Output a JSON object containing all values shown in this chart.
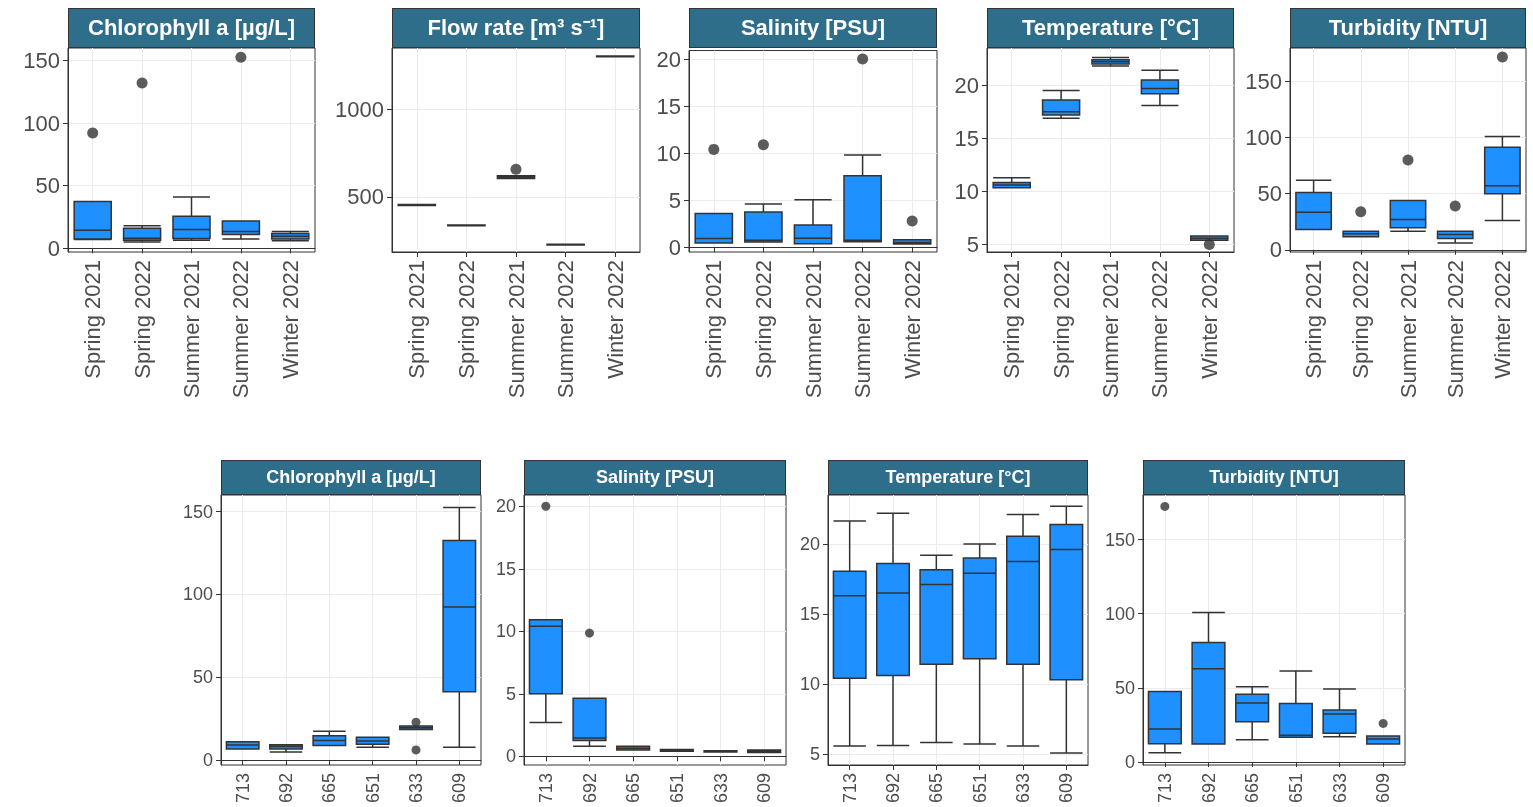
{
  "chart_data": [
    {
      "type": "box",
      "title": "Chlorophyll a [µg/L]",
      "categories": [
        "Spring 2021",
        "Spring 2022",
        "Summer 2021",
        "Summer 2022",
        "Winter 2022"
      ],
      "ylim": [
        -3,
        160
      ],
      "yticks": [
        0,
        50,
        100,
        150
      ],
      "grid": true,
      "series": [
        {
          "color": "#1e90ff",
          "boxes": [
            {
              "low": 7,
              "q1": 7.3,
              "median": 14.4,
              "q3": 37.3,
              "high": 37.3,
              "outliers": [
                92
              ]
            },
            {
              "low": 5,
              "q1": 6.4,
              "median": 8,
              "q3": 16,
              "high": 18,
              "outliers": [
                132
              ]
            },
            {
              "low": 6.4,
              "q1": 7.7,
              "median": 15,
              "q3": 25.5,
              "high": 41
            },
            {
              "low": 7.3,
              "q1": 10.9,
              "median": 13.4,
              "q3": 21.7,
              "high": 21.7,
              "outliers": [
                152.6
              ]
            },
            {
              "low": 6,
              "q1": 7.3,
              "median": 9.6,
              "q3": 11.8,
              "high": 13.4
            }
          ]
        }
      ]
    },
    {
      "type": "box",
      "title": "Flow rate [m³ s⁻¹]",
      "categories": [
        "Spring 2021",
        "Spring 2022",
        "Summer 2021",
        "Summer 2022",
        "Winter 2022"
      ],
      "ylim": [
        185,
        1350
      ],
      "yticks": [
        500,
        1000
      ],
      "grid": true,
      "series": [
        {
          "color": "#1e90ff",
          "boxes": [
            {
              "low": 450,
              "q1": 450,
              "median": 453,
              "q3": 456,
              "high": 456
            },
            {
              "low": 335,
              "q1": 335,
              "median": 337,
              "q3": 339,
              "high": 339
            },
            {
              "low": 605,
              "q1": 605,
              "median": 612,
              "q3": 620,
              "high": 620,
              "outliers": [
                657
              ]
            },
            {
              "low": 225,
              "q1": 225,
              "median": 227,
              "q3": 229,
              "high": 229
            },
            {
              "low": 1300,
              "q1": 1300,
              "median": 1302,
              "q3": 1304,
              "high": 1304
            }
          ]
        }
      ]
    },
    {
      "type": "box",
      "title": "Salinity [PSU]",
      "categories": [
        "Spring 2021",
        "Spring 2022",
        "Summer 2021",
        "Summer 2022",
        "Winter 2022"
      ],
      "ylim": [
        -0.5,
        20.9
      ],
      "yticks": [
        0,
        5,
        10,
        15,
        20
      ],
      "grid": true,
      "series": [
        {
          "color": "#1e90ff",
          "boxes": [
            {
              "low": 0.46,
              "q1": 0.46,
              "median": 0.93,
              "q3": 3.6,
              "high": 3.6,
              "outliers": [
                10.4
              ]
            },
            {
              "low": 0.55,
              "q1": 0.55,
              "median": 0.76,
              "q3": 3.75,
              "high": 4.6,
              "outliers": [
                10.9
              ]
            },
            {
              "low": 0.38,
              "q1": 0.38,
              "median": 0.97,
              "q3": 2.36,
              "high": 5.06
            },
            {
              "low": 0.59,
              "q1": 0.59,
              "median": 0.76,
              "q3": 7.6,
              "high": 9.8,
              "outliers": [
                20
              ]
            },
            {
              "low": 0.34,
              "q1": 0.34,
              "median": 0.5,
              "q3": 0.8,
              "high": 0.8,
              "outliers": [
                2.8
              ]
            }
          ]
        }
      ]
    },
    {
      "type": "box",
      "title": "Temperature [°C]",
      "categories": [
        "Spring 2021",
        "Spring 2022",
        "Summer 2021",
        "Summer 2022",
        "Winter 2022"
      ],
      "ylim": [
        4.3,
        23.5
      ],
      "yticks": [
        5,
        10,
        15,
        20
      ],
      "grid": true,
      "series": [
        {
          "color": "#1e90ff",
          "boxes": [
            {
              "low": 10.34,
              "q1": 10.34,
              "median": 10.6,
              "q3": 10.84,
              "high": 11.3
            },
            {
              "low": 16.9,
              "q1": 17.2,
              "median": 17.5,
              "q3": 18.6,
              "high": 19.5
            },
            {
              "low": 21.8,
              "q1": 22,
              "median": 22.2,
              "q3": 22.4,
              "high": 22.6
            },
            {
              "low": 18.1,
              "q1": 19.2,
              "median": 19.7,
              "q3": 20.5,
              "high": 21.4
            },
            {
              "low": 5.4,
              "q1": 5.4,
              "median": 5.6,
              "q3": 5.8,
              "high": 5.8,
              "outliers": [
                5
              ]
            }
          ]
        }
      ]
    },
    {
      "type": "box",
      "title": "Turbidity [NTU]",
      "categories": [
        "Spring 2021",
        "Spring 2022",
        "Summer 2021",
        "Summer 2022",
        "Winter 2022"
      ],
      "ylim": [
        -2,
        180
      ],
      "yticks": [
        0,
        50,
        100,
        150
      ],
      "grid": true,
      "series": [
        {
          "color": "#1e90ff",
          "boxes": [
            {
              "low": 18,
              "q1": 18,
              "median": 33.5,
              "q3": 51,
              "high": 62
            },
            {
              "low": 11.5,
              "q1": 11.5,
              "median": 14.2,
              "q3": 16.6,
              "high": 16.6,
              "outliers": [
                34
              ]
            },
            {
              "low": 16.6,
              "q1": 19.6,
              "median": 27,
              "q3": 44,
              "high": 44,
              "outliers": [
                80
              ]
            },
            {
              "low": 6,
              "q1": 10,
              "median": 13.6,
              "q3": 16.6,
              "high": 16.6,
              "outliers": [
                39
              ]
            },
            {
              "low": 26,
              "q1": 50,
              "median": 57,
              "q3": 91.5,
              "high": 101,
              "outliers": [
                172
              ]
            }
          ]
        }
      ]
    },
    {
      "type": "box",
      "title": "Chlorophyll a [µg/L]",
      "categories": [
        "713",
        "692",
        "665",
        "651",
        "633",
        "609"
      ],
      "ylim": [
        -3,
        160
      ],
      "yticks": [
        0,
        50,
        100,
        150
      ],
      "grid": true,
      "series": [
        {
          "color": "#1e90ff",
          "boxes": [
            {
              "low": 6.7,
              "q1": 6.7,
              "median": 9,
              "q3": 11,
              "high": 11
            },
            {
              "low": 4.9,
              "q1": 6.7,
              "median": 8.2,
              "q3": 9.2,
              "high": 9.2
            },
            {
              "low": 8.7,
              "q1": 8.7,
              "median": 11.8,
              "q3": 14.6,
              "high": 17.4
            },
            {
              "low": 7.7,
              "q1": 9.5,
              "median": 11.5,
              "q3": 13.8,
              "high": 13.8
            },
            {
              "low": 18.4,
              "q1": 18.4,
              "median": 19.5,
              "q3": 20.5,
              "high": 20.5,
              "outliers": [
                22.8,
                6.1
              ]
            },
            {
              "low": 7.7,
              "q1": 41.2,
              "median": 92.4,
              "q3": 132.6,
              "high": 152.5
            }
          ]
        }
      ]
    },
    {
      "type": "box",
      "title": "Salinity [PSU]",
      "categories": [
        "713",
        "692",
        "665",
        "651",
        "633",
        "609"
      ],
      "ylim": [
        -0.7,
        20.9
      ],
      "yticks": [
        0,
        5,
        10,
        15,
        20
      ],
      "grid": true,
      "series": [
        {
          "color": "#1e90ff",
          "boxes": [
            {
              "low": 2.7,
              "q1": 5,
              "median": 10.4,
              "q3": 10.93,
              "high": 10.93,
              "outliers": [
                20
              ]
            },
            {
              "low": 0.8,
              "q1": 1.26,
              "median": 1.46,
              "q3": 4.65,
              "high": 4.65,
              "outliers": [
                9.85
              ]
            },
            {
              "low": 0.5,
              "q1": 0.5,
              "median": 0.65,
              "q3": 0.8,
              "high": 0.8
            },
            {
              "low": 0.4,
              "q1": 0.4,
              "median": 0.5,
              "q3": 0.55,
              "high": 0.55
            },
            {
              "low": 0.35,
              "q1": 0.35,
              "median": 0.4,
              "q3": 0.45,
              "high": 0.45
            },
            {
              "low": 0.3,
              "q1": 0.3,
              "median": 0.4,
              "q3": 0.5,
              "high": 0.5
            }
          ]
        }
      ]
    },
    {
      "type": "box",
      "title": "Temperature [°C]",
      "categories": [
        "713",
        "692",
        "665",
        "651",
        "633",
        "609"
      ],
      "ylim": [
        4.2,
        23.5
      ],
      "yticks": [
        5,
        10,
        15,
        20
      ],
      "grid": true,
      "series": [
        {
          "color": "#1e90ff",
          "boxes": [
            {
              "low": 5.55,
              "q1": 10.4,
              "median": 16.3,
              "q3": 18.05,
              "high": 21.65
            },
            {
              "low": 5.6,
              "q1": 10.6,
              "median": 16.5,
              "q3": 18.6,
              "high": 22.2
            },
            {
              "low": 5.8,
              "q1": 11.4,
              "median": 17.1,
              "q3": 18.15,
              "high": 19.2
            },
            {
              "low": 5.7,
              "q1": 11.8,
              "median": 17.9,
              "q3": 19,
              "high": 20
            },
            {
              "low": 5.55,
              "q1": 11.4,
              "median": 18.75,
              "q3": 20.55,
              "high": 22.1
            },
            {
              "low": 5.05,
              "q1": 10.3,
              "median": 19.6,
              "q3": 21.4,
              "high": 22.7
            }
          ]
        }
      ]
    },
    {
      "type": "box",
      "title": "Turbidity [NTU]",
      "categories": [
        "713",
        "692",
        "665",
        "651",
        "633",
        "609"
      ],
      "ylim": [
        -2,
        180
      ],
      "yticks": [
        0,
        50,
        100,
        150
      ],
      "grid": true,
      "series": [
        {
          "color": "#1e90ff",
          "boxes": [
            {
              "low": 6.2,
              "q1": 12.4,
              "median": 22.3,
              "q3": 47.6,
              "high": 47.6,
              "outliers": [
                172.3
              ]
            },
            {
              "low": 12.1,
              "q1": 12.1,
              "median": 62.9,
              "q3": 80.6,
              "high": 100.8
            },
            {
              "low": 15,
              "q1": 27.2,
              "median": 39.8,
              "q3": 45.7,
              "high": 50.8
            },
            {
              "low": 16.7,
              "q1": 16.7,
              "median": 18,
              "q3": 39.5,
              "high": 61.3
            },
            {
              "low": 17,
              "q1": 19.4,
              "median": 32.3,
              "q3": 35,
              "high": 49.2
            },
            {
              "low": 12.1,
              "q1": 12.1,
              "median": 15.6,
              "q3": 17.5,
              "high": 17.5,
              "outliers": [
                26
              ]
            }
          ]
        }
      ]
    }
  ]
}
